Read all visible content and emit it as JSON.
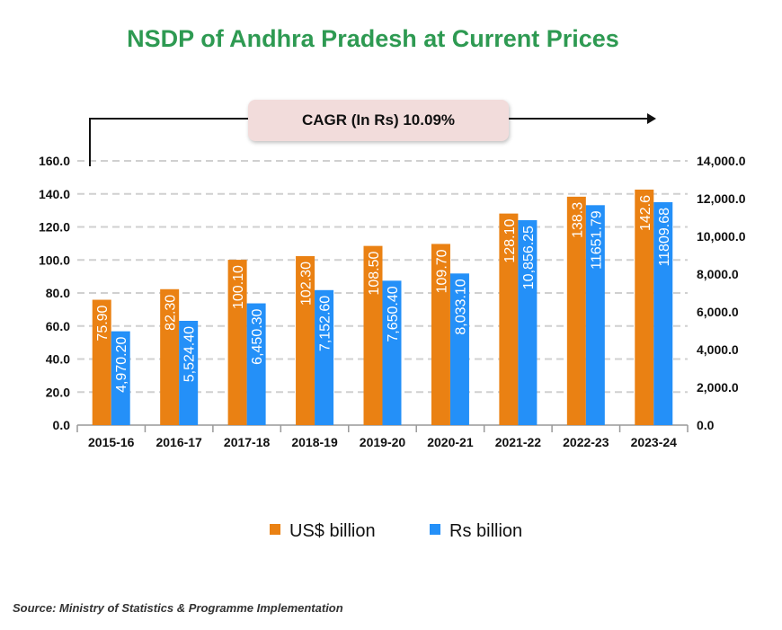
{
  "chart_data": {
    "type": "bar",
    "title": "NSDP of Andhra Pradesh at Current Prices",
    "annotation": "CAGR (In Rs) 10.09%",
    "categories": [
      "2015-16",
      "2016-17",
      "2017-18",
      "2018-19",
      "2019-20",
      "2020-21",
      "2021-22",
      "2022-23",
      "2023-24"
    ],
    "series": [
      {
        "name": "US$ billion",
        "axis": "left",
        "color": "#ea8113",
        "values": [
          75.9,
          82.3,
          100.1,
          102.3,
          108.5,
          109.7,
          128.1,
          138.3,
          142.6
        ],
        "labels": [
          "75.90",
          "82.30",
          "100.10",
          "102.30",
          "108.50",
          "109.70",
          "128.10",
          "138.3",
          "142.6"
        ]
      },
      {
        "name": "Rs billion",
        "axis": "right",
        "color": "#2490f8",
        "values": [
          4970.2,
          5524.4,
          6450.3,
          7152.6,
          7650.4,
          8033.1,
          10856.25,
          11651.79,
          11809.68
        ],
        "labels": [
          "4,970.20",
          "5,524.40",
          "6,450.30",
          "7,152.60",
          "7,650.40",
          "8,033.10",
          "10,856.25",
          "11651.79",
          "11809.68"
        ]
      }
    ],
    "left_axis": {
      "range": [
        0,
        160
      ],
      "ticks": [
        "0.0",
        "20.0",
        "40.0",
        "60.0",
        "80.0",
        "100.0",
        "120.0",
        "140.0",
        "160.0"
      ]
    },
    "right_axis": {
      "range": [
        0,
        14000
      ],
      "ticks": [
        "0.0",
        "2,000.0",
        "4,000.0",
        "6,000.0",
        "8,000.0",
        "10,000.0",
        "12,000.0",
        "14,000.0"
      ]
    },
    "grid": true,
    "legend_placement": "bottom"
  },
  "source": "Source: Ministry of Statistics & Programme Implementation"
}
